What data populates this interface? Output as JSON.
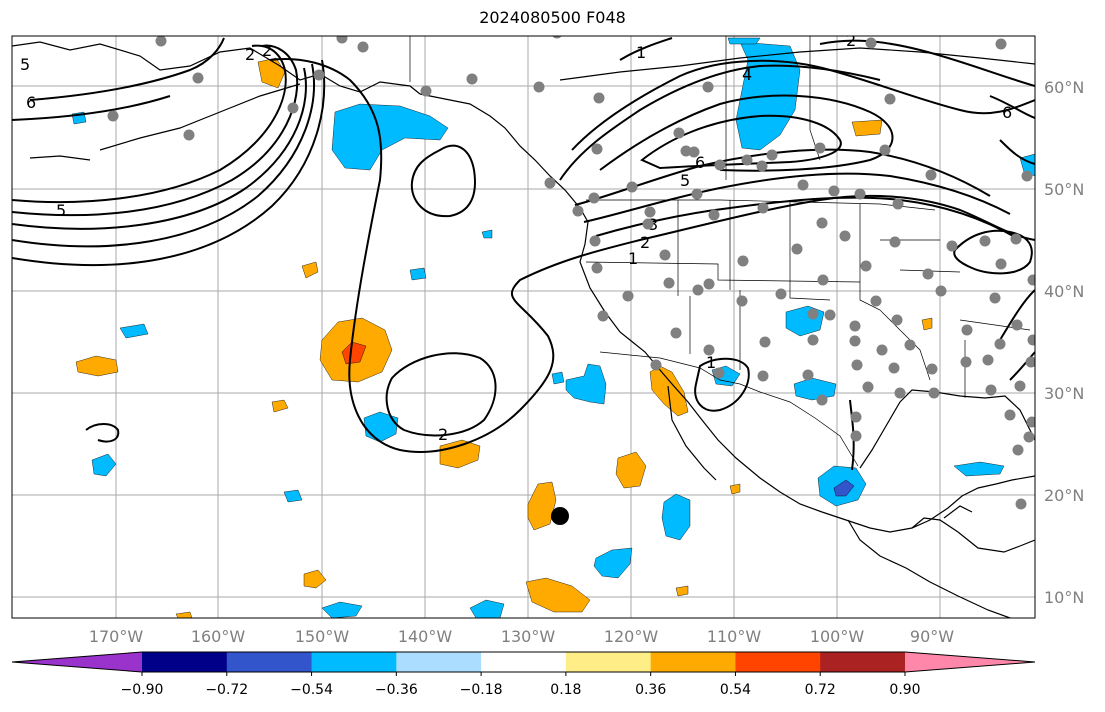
{
  "title": "2024080500 F048",
  "map": {
    "lon_labels": [
      "170°W",
      "160°W",
      "150°W",
      "140°W",
      "130°W",
      "120°W",
      "110°W",
      "100°W",
      "90°W"
    ],
    "lat_labels": [
      "60°N",
      "50°N",
      "40°N",
      "30°N",
      "20°N",
      "10°N"
    ],
    "contour_labels": [
      "5",
      "6",
      "2",
      "2",
      "1",
      "4",
      "6",
      "5",
      "3",
      "2",
      "1",
      "6",
      "2",
      "1",
      "5",
      "2"
    ]
  },
  "colorbar": {
    "colors": [
      "#9933cc",
      "#000088",
      "#3355cc",
      "#00bbff",
      "#aaddff",
      "#ffffff",
      "#ffee88",
      "#ffaa00",
      "#ff4400",
      "#aa2222",
      "#ff88aa"
    ],
    "tick_labels": [
      "−0.90",
      "−0.72",
      "−0.54",
      "−0.36",
      "−0.18",
      "0.18",
      "0.36",
      "0.54",
      "0.72",
      "0.90"
    ]
  }
}
